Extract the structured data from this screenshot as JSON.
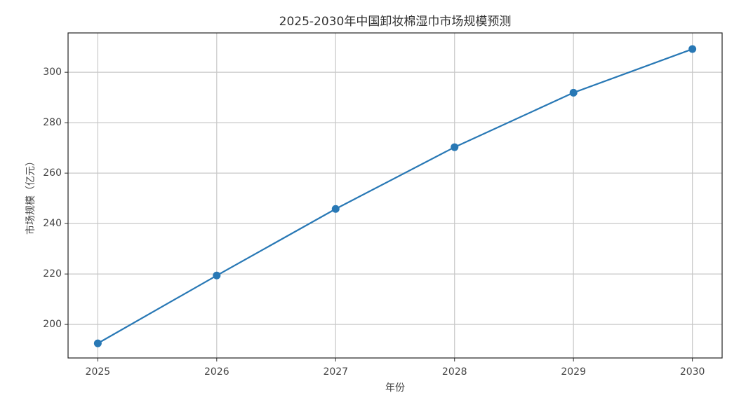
{
  "chart_data": {
    "type": "line",
    "title": "2025-2030年中国卸妆棉湿巾市场规模预测",
    "x_label": "年份",
    "y_label": "市场规模（亿元）",
    "x": [
      2025,
      2026,
      2027,
      2028,
      2029,
      2030
    ],
    "series": [
      {
        "name": "市场规模",
        "color": "#2878b5",
        "values": [
          192.5,
          219.4,
          245.8,
          270.3,
          291.9,
          309.2
        ]
      }
    ],
    "xlim": [
      2024.75,
      2030.25
    ],
    "xticks": [
      2025,
      2026,
      2027,
      2028,
      2029,
      2030
    ],
    "ylim": [
      186.7,
      315.6
    ],
    "yticks": [
      200,
      220,
      240,
      260,
      280,
      300
    ],
    "grid": true
  }
}
